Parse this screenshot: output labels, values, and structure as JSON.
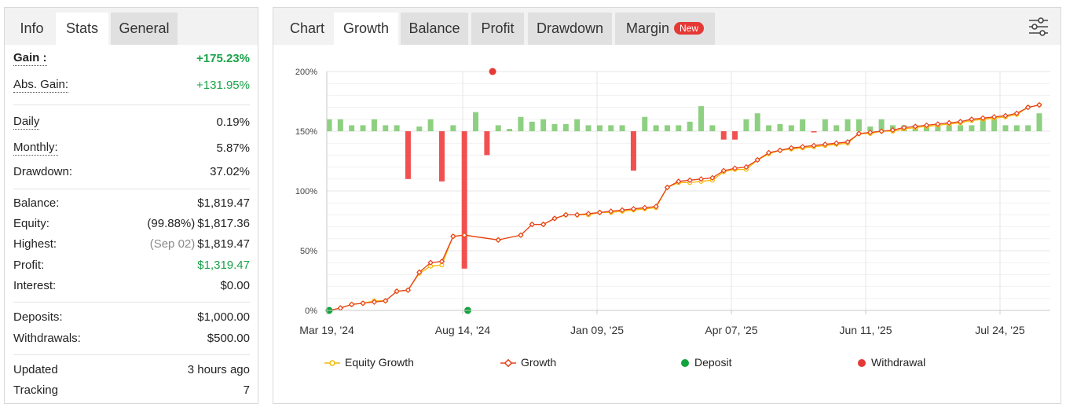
{
  "stats_panel": {
    "tabs": [
      {
        "label": "Info",
        "state": "plain"
      },
      {
        "label": "Stats",
        "state": "active"
      },
      {
        "label": "General",
        "state": "boxed"
      }
    ],
    "gain": {
      "label": "Gain :",
      "value": "+175.23%"
    },
    "abs_gain": {
      "label": "Abs. Gain:",
      "value": "+131.95%"
    },
    "daily": {
      "label": "Daily",
      "value": "0.19%"
    },
    "monthly": {
      "label": "Monthly:",
      "value": "5.87%"
    },
    "drawdown": {
      "label": "Drawdown:",
      "value": "37.02%"
    },
    "balance": {
      "label": "Balance:",
      "value": "$1,819.47"
    },
    "equity": {
      "label": "Equity:",
      "note": "(99.88%)",
      "value": "$1,817.36"
    },
    "highest": {
      "label": "Highest:",
      "note": "(Sep 02)",
      "value": "$1,819.47"
    },
    "profit": {
      "label": "Profit:",
      "value": "$1,319.47"
    },
    "interest": {
      "label": "Interest:",
      "value": "$0.00"
    },
    "deposits": {
      "label": "Deposits:",
      "value": "$1,000.00"
    },
    "withdrawals": {
      "label": "Withdrawals:",
      "value": "$500.00"
    },
    "updated": {
      "label": "Updated",
      "value": "3 hours ago"
    },
    "tracking": {
      "label": "Tracking",
      "value": "7"
    }
  },
  "chart_panel": {
    "tabs": [
      {
        "label": "Chart",
        "state": "plain"
      },
      {
        "label": "Growth",
        "state": "active"
      },
      {
        "label": "Balance",
        "state": "boxed"
      },
      {
        "label": "Profit",
        "state": "boxed"
      },
      {
        "label": "Drawdown",
        "state": "boxed"
      },
      {
        "label": "Margin",
        "state": "boxed",
        "badge": "New"
      }
    ],
    "settings_icon": "sliders-icon"
  },
  "colors": {
    "growth": "#e8401c",
    "equity_growth": "#f5b800",
    "deposit": "#11a43c",
    "withdrawal": "#e53935",
    "bar_positive": "#8ed081",
    "bar_negative": "#f25050",
    "gain_text": "#1aa34a",
    "badge": "#e53935"
  },
  "chart_data": {
    "type": "line",
    "y_tick_labels": [
      "0%",
      "50%",
      "100%",
      "150%",
      "200%"
    ],
    "y_ticks": [
      0,
      50,
      100,
      150,
      200
    ],
    "ylim": [
      0,
      200
    ],
    "x_tick_labels": [
      "Mar 19, '24",
      "Aug 14, '24",
      "Jan 09, '25",
      "Apr 07, '25",
      "Jun 11, '25",
      "Jul 24, '25"
    ],
    "grid": true,
    "legend_position": "bottom",
    "legend": [
      "Equity Growth",
      "Growth",
      "Deposit",
      "Withdrawal"
    ],
    "growth": {
      "name": "Growth",
      "x": [
        0,
        1,
        2,
        3,
        4,
        5,
        6,
        7,
        8,
        9,
        10,
        11,
        12,
        13,
        14,
        15,
        16,
        17,
        18,
        19,
        20,
        21,
        22,
        23,
        24,
        25,
        26,
        27,
        28,
        29,
        30,
        31,
        32,
        33,
        34,
        35,
        36,
        37,
        38,
        39,
        40,
        41,
        42,
        43,
        44,
        45,
        46,
        47,
        48,
        49,
        50,
        51,
        52,
        53,
        54,
        55,
        56,
        57,
        58,
        59,
        60,
        61,
        62,
        63
      ],
      "values": [
        0,
        2,
        5,
        6,
        7,
        8,
        16,
        17,
        32,
        40,
        41,
        62,
        63,
        null,
        null,
        59,
        null,
        63,
        72,
        72,
        77,
        80,
        80,
        81,
        82,
        83,
        84,
        85,
        86,
        87,
        103,
        108,
        109,
        110,
        111,
        117,
        119,
        120,
        126,
        132,
        134,
        136,
        137,
        138,
        139,
        140,
        141,
        148,
        149,
        150,
        151,
        153,
        154,
        155,
        156,
        157,
        158,
        160,
        161,
        162,
        163,
        165,
        170,
        172
      ]
    },
    "equity_growth": {
      "name": "Equity Growth",
      "x": [
        0,
        1,
        2,
        3,
        4,
        5,
        6,
        7,
        8,
        9,
        10,
        11,
        12,
        13,
        14,
        15,
        16,
        17,
        18,
        19,
        20,
        21,
        22,
        23,
        24,
        25,
        26,
        27,
        28,
        29,
        30,
        31,
        32,
        33,
        34,
        35,
        36,
        37,
        38,
        39,
        40,
        41,
        42,
        43,
        44,
        45,
        46,
        47,
        48,
        49,
        50,
        51,
        52,
        53,
        54,
        55,
        56,
        57,
        58,
        59,
        60,
        61,
        62,
        63
      ],
      "values": [
        0,
        2,
        5,
        6,
        8,
        8,
        16,
        17,
        31,
        37,
        38,
        62,
        63,
        null,
        null,
        59,
        null,
        63,
        72,
        72,
        77,
        80,
        80,
        80,
        82,
        82,
        83,
        84,
        85,
        86,
        103,
        107,
        107,
        108,
        109,
        116,
        118,
        118,
        126,
        131,
        134,
        135,
        136,
        137,
        138,
        139,
        140,
        148,
        148,
        150,
        150,
        152,
        153,
        154,
        155,
        156,
        157,
        159,
        160,
        161,
        162,
        164,
        170,
        172
      ]
    },
    "daily_bars": {
      "name": "Daily change",
      "baseline": 150,
      "x": [
        0,
        1,
        2,
        3,
        4,
        5,
        6,
        7,
        8,
        9,
        10,
        11,
        12,
        13,
        14,
        15,
        16,
        17,
        18,
        19,
        20,
        21,
        22,
        23,
        24,
        25,
        26,
        27,
        28,
        29,
        30,
        31,
        32,
        33,
        34,
        35,
        36,
        37,
        38,
        39,
        40,
        41,
        42,
        43,
        44,
        45,
        46,
        47,
        48,
        49,
        50,
        51,
        52,
        53,
        54,
        55,
        56,
        57,
        58,
        59,
        60,
        61,
        62,
        63
      ],
      "values": [
        10,
        10,
        5,
        5,
        10,
        5,
        5,
        -40,
        4,
        10,
        -42,
        5,
        -115,
        16,
        -20,
        5,
        2,
        12,
        8,
        10,
        6,
        6,
        10,
        5,
        5,
        5,
        5,
        -33,
        12,
        5,
        5,
        5,
        8,
        21,
        5,
        -7,
        -7,
        10,
        15,
        5,
        6,
        5,
        10,
        -1,
        10,
        5,
        10,
        10,
        4,
        10,
        5,
        5,
        5,
        5,
        5,
        5,
        5,
        5,
        10,
        10,
        5,
        5,
        5,
        15
      ]
    },
    "deposit_points": [
      {
        "x": 0,
        "y": 0
      },
      {
        "x": 12.3,
        "y": 0
      }
    ],
    "withdrawal_points": [
      {
        "x": 14.5,
        "y": 200
      }
    ]
  }
}
